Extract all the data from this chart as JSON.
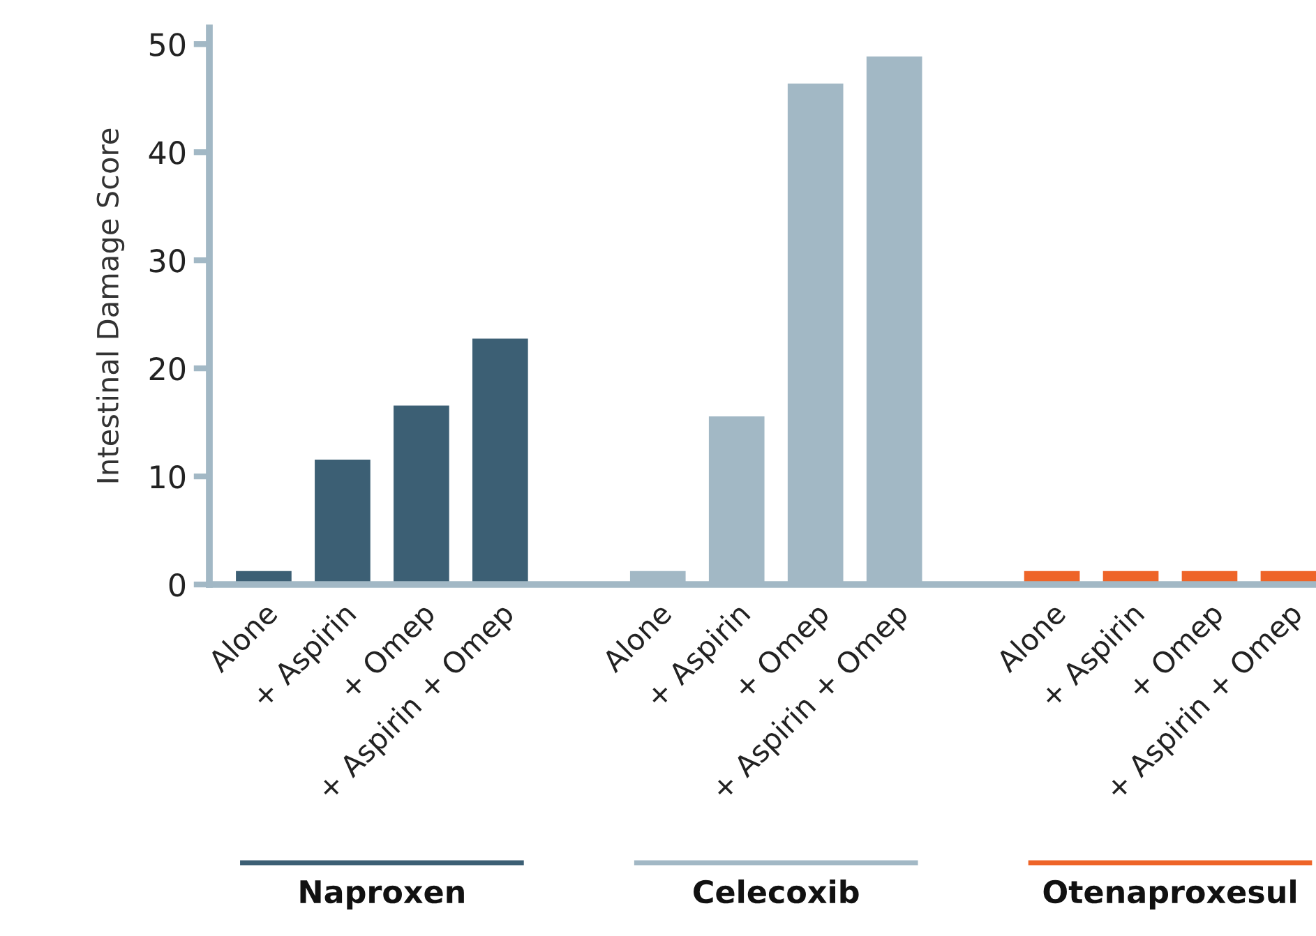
{
  "chart_data": {
    "type": "bar",
    "ylabel": "Intestinal Damage Score",
    "categories": [
      "Alone",
      "+ Aspirin",
      "+ Omep",
      "+ Aspirin + Omep",
      null,
      "Alone",
      "+ Aspirin",
      "+ Omep",
      "+ Aspirin + Omep",
      null,
      "Alone",
      "+ Aspirin",
      "+ Omep",
      "+ Aspirin + Omep"
    ],
    "values": [
      1.3,
      11.6,
      16.6,
      22.8,
      null,
      1.3,
      15.6,
      46.4,
      48.9,
      null,
      1.3,
      1.3,
      1.3,
      1.3
    ],
    "colors": [
      "#3c5f74",
      "#3c5f74",
      "#3c5f74",
      "#3c5f74",
      null,
      "#a2b8c5",
      "#a2b8c5",
      "#a2b8c5",
      "#a2b8c5",
      null,
      "#ee6428",
      "#ee6428",
      "#ee6428",
      "#ee6428"
    ],
    "annotations": [
      "Naproxen",
      "Celecoxib",
      "Otenaproxesul"
    ],
    "ylim": [
      0,
      51.5
    ],
    "yticks": [
      0,
      10,
      20,
      30,
      40,
      50
    ],
    "grid": false
  }
}
